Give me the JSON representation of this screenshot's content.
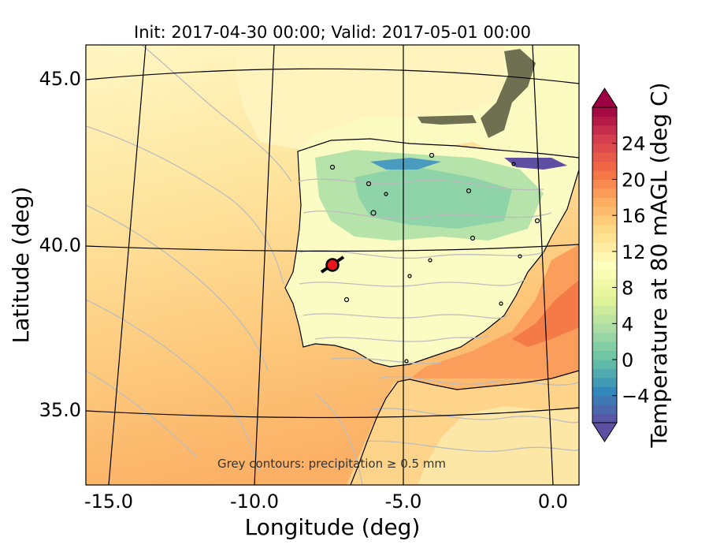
{
  "title": "Init: 2017-04-30 00:00; Valid: 2017-05-01 00:00",
  "xlabel": "Longitude (deg)",
  "ylabel": "Latitude (deg)",
  "xticks": [
    "-15.0",
    "-10.0",
    "-5.0",
    "0.0"
  ],
  "yticks": [
    "45.0",
    "40.0",
    "35.0"
  ],
  "xlim": [
    -16.0,
    0.3
  ],
  "ylim": [
    32.8,
    46.0
  ],
  "colorbar": {
    "label": "Temperature at 80 mAGL (deg C)",
    "ticks": [
      "24",
      "20",
      "16",
      "12",
      "8",
      "4",
      "0",
      "−4"
    ],
    "range": [
      -7,
      28
    ],
    "colors": [
      "#5e4fa2",
      "#3288bd",
      "#66c2a5",
      "#abdda4",
      "#e6f598",
      "#ffffbf",
      "#fee08b",
      "#fdae61",
      "#f46d43",
      "#d53e4f",
      "#9e0142"
    ]
  },
  "annotation": "Grey contours: precipitation ≥ 0.5 mm",
  "marker": {
    "lon": -7.7,
    "lat": 39.4,
    "color": "#e8141e"
  },
  "colors": {
    "ocean_cool": "#fff2b0",
    "ocean_mid": "#fed98e",
    "ocean_warm": "#fdae61",
    "land": "#fffccc",
    "interior_cold": "#8fd3a8",
    "precip_contour": "#bdbdbd"
  }
}
